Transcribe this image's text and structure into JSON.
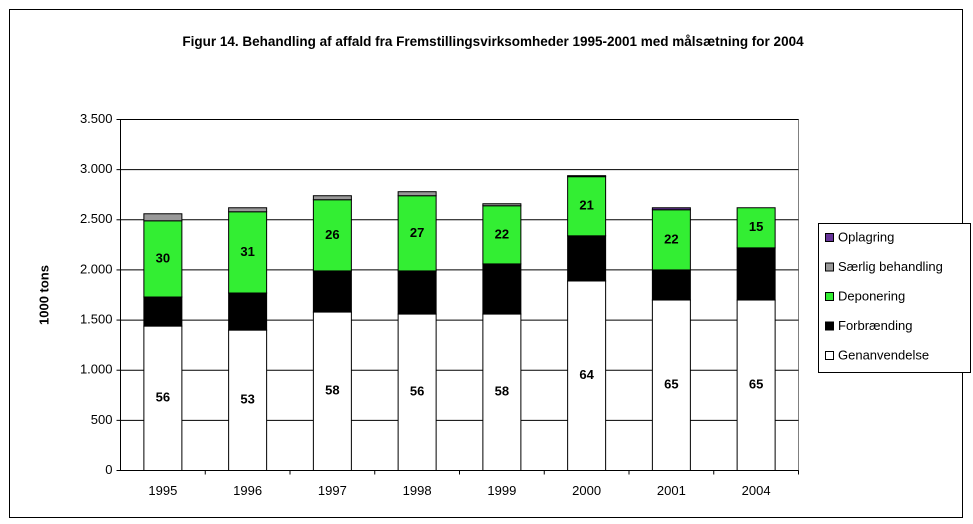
{
  "chart_data": {
    "type": "stacked-bar",
    "title": "Figur 14. Behandling af affald fra Fremstillingsvirksomheder 1995-2001 med målsætning for 2004",
    "y_label": "1000 tons",
    "categories": [
      "1995",
      "1996",
      "1997",
      "1998",
      "1999",
      "2000",
      "2001",
      "2004"
    ],
    "series": [
      {
        "name": "Genanvendelse",
        "color": "#ffffff",
        "values": [
          1440,
          1400,
          1580,
          1560,
          1560,
          1890,
          1700,
          1700
        ],
        "shares": [
          56,
          53,
          58,
          56,
          58,
          64,
          65,
          65
        ]
      },
      {
        "name": "Forbrænding",
        "color": "#000000",
        "values": [
          290,
          370,
          410,
          430,
          500,
          450,
          300,
          520
        ],
        "shares": [
          11,
          14,
          14,
          15,
          19,
          15,
          12,
          20
        ]
      },
      {
        "name": "Deponering",
        "color": "#33ee33",
        "values": [
          760,
          810,
          710,
          750,
          580,
          590,
          600,
          400
        ],
        "shares": [
          30,
          31,
          26,
          27,
          22,
          21,
          22,
          15
        ]
      },
      {
        "name": "Særlig behandling",
        "color": "#999999",
        "values": [
          70,
          40,
          40,
          40,
          20,
          10,
          0,
          0
        ]
      },
      {
        "name": "Oplagring",
        "color": "#663399",
        "values": [
          0,
          0,
          0,
          0,
          0,
          0,
          20,
          0
        ]
      }
    ],
    "ylim": [
      0,
      3500
    ],
    "yticks": [
      0,
      500,
      {
        "value": 1000,
        "label": "1.000"
      },
      {
        "value": 1500,
        "label": "1.500"
      },
      {
        "value": 2000,
        "label": "2.000"
      },
      {
        "value": 2500,
        "label": "2.500"
      },
      {
        "value": 3000,
        "label": "3.000"
      },
      {
        "value": 3500,
        "label": "3.500"
      }
    ],
    "grid": true,
    "legend": "right"
  }
}
